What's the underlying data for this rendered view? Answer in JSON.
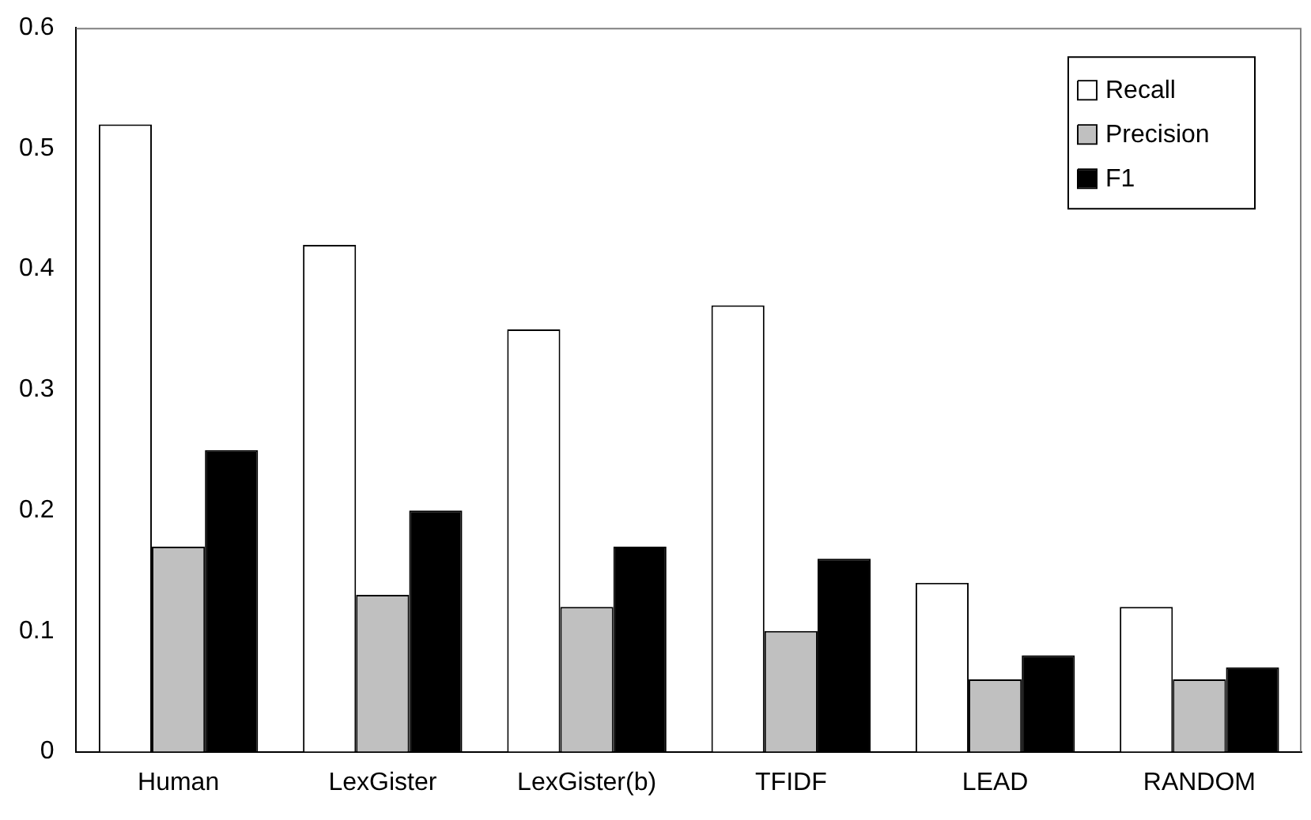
{
  "chart_data": {
    "type": "bar",
    "categories": [
      "Human",
      "LexGister",
      "LexGister(b)",
      "TFIDF",
      "LEAD",
      "RANDOM"
    ],
    "series": [
      {
        "name": "Recall",
        "color": "#ffffff",
        "values": [
          0.52,
          0.42,
          0.35,
          0.37,
          0.14,
          0.12
        ]
      },
      {
        "name": "Precision",
        "color": "#c0c0c0",
        "values": [
          0.17,
          0.13,
          0.12,
          0.1,
          0.06,
          0.06
        ]
      },
      {
        "name": "F1",
        "color": "#000000",
        "values": [
          0.25,
          0.2,
          0.17,
          0.16,
          0.08,
          0.07
        ]
      }
    ],
    "ylim": [
      0,
      0.6
    ],
    "yticks": [
      0,
      0.1,
      0.2,
      0.3,
      0.4,
      0.5,
      0.6
    ],
    "grid": false,
    "legend": "top right"
  }
}
